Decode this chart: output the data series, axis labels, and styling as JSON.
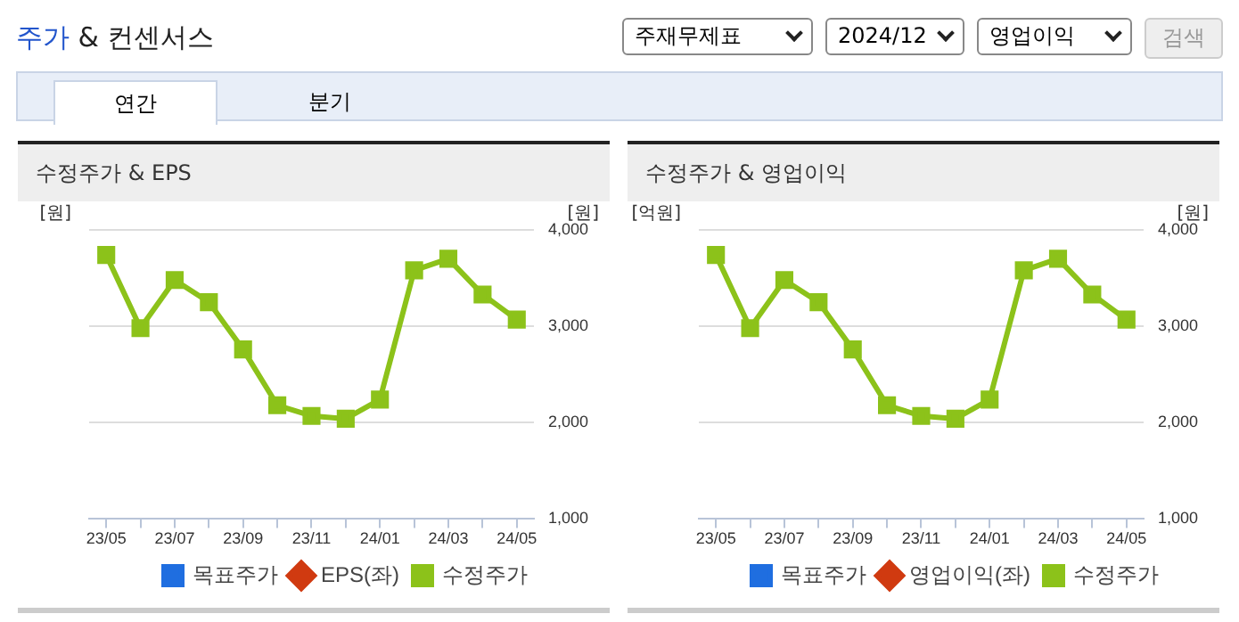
{
  "chart_data": [
    {
      "type": "other",
      "title": "주가 & 컨센서스",
      "annotations": [
        "주재무제표",
        "2024/12",
        "영업이익",
        "검색",
        "연간",
        "분기"
      ]
    },
    {
      "type": "line",
      "title": "수정주가 & EPS",
      "ylabel": "[원]",
      "y2label": "[원]",
      "categories": [
        "23/05",
        null,
        "23/07",
        null,
        "23/09",
        null,
        "23/11",
        null,
        "24/01",
        null,
        "24/03",
        null,
        "24/05"
      ],
      "series": [
        {
          "name": "목표주가",
          "color": "#1f6ee0",
          "marker": "square",
          "values": [
            null,
            null,
            null,
            null,
            null,
            null,
            null,
            null,
            null,
            null,
            null,
            null,
            null
          ]
        },
        {
          "name": "EPS(좌)",
          "color": "#d03a10",
          "marker": "diamond",
          "values": [
            null,
            null,
            null,
            null,
            null,
            null,
            null,
            null,
            null,
            null,
            null,
            null,
            null
          ]
        },
        {
          "name": "수정주가",
          "color": "#8cc21a",
          "marker": "square",
          "axis": "y2",
          "values": [
            3740,
            2980,
            3480,
            3250,
            2760,
            2180,
            2070,
            2040,
            2240,
            3580,
            3700,
            3330,
            3070
          ]
        }
      ],
      "y2lim": [
        1000,
        4000
      ],
      "y2ticks": [
        {
          "value": 1000,
          "label": "1,000"
        },
        {
          "value": 2000,
          "label": "2,000"
        },
        {
          "value": 3000,
          "label": "3,000"
        },
        {
          "value": 4000,
          "label": "4,000"
        }
      ],
      "grid": "y",
      "legend": "bottom"
    },
    {
      "type": "line",
      "title": "수정주가 & 영업이익",
      "ylabel": "[억원]",
      "y2label": "[원]",
      "categories": [
        "23/05",
        null,
        "23/07",
        null,
        "23/09",
        null,
        "23/11",
        null,
        "24/01",
        null,
        "24/03",
        null,
        "24/05"
      ],
      "series": [
        {
          "name": "목표주가",
          "color": "#1f6ee0",
          "marker": "square",
          "values": [
            null,
            null,
            null,
            null,
            null,
            null,
            null,
            null,
            null,
            null,
            null,
            null,
            null
          ]
        },
        {
          "name": "영업이익(좌)",
          "color": "#d03a10",
          "marker": "diamond",
          "values": [
            null,
            null,
            null,
            null,
            null,
            null,
            null,
            null,
            null,
            null,
            null,
            null,
            null
          ]
        },
        {
          "name": "수정주가",
          "color": "#8cc21a",
          "marker": "square",
          "axis": "y2",
          "values": [
            3740,
            2980,
            3480,
            3250,
            2760,
            2180,
            2070,
            2040,
            2240,
            3580,
            3700,
            3330,
            3070
          ]
        }
      ],
      "y2lim": [
        1000,
        4000
      ],
      "y2ticks": [
        {
          "value": 1000,
          "label": "1,000"
        },
        {
          "value": 2000,
          "label": "2,000"
        },
        {
          "value": 3000,
          "label": "3,000"
        },
        {
          "value": 4000,
          "label": "4,000"
        }
      ],
      "grid": "y",
      "legend": "bottom"
    }
  ]
}
